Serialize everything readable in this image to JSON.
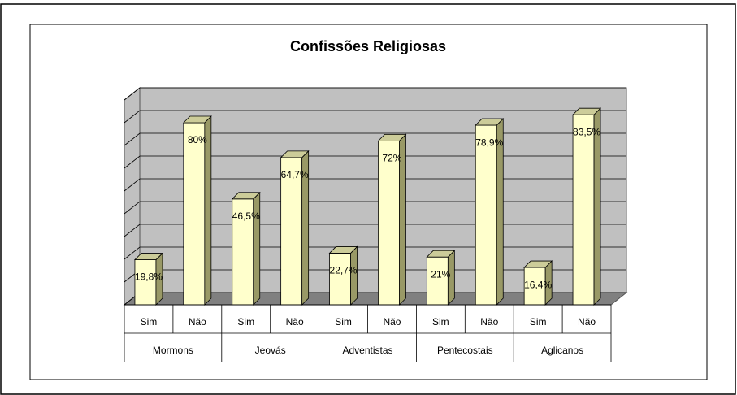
{
  "chart_data": {
    "type": "bar3d",
    "title": "Confissões Religiosas",
    "categories": [
      "Sim",
      "Não",
      "Sim",
      "Não",
      "Sim",
      "Não",
      "Sim",
      "Não",
      "Sim",
      "Não"
    ],
    "groups": [
      "Mormons",
      "Jeovás",
      "Adventistas",
      "Pentecostais",
      "Aglicanos"
    ],
    "values": [
      19.8,
      80,
      46.5,
      64.7,
      22.7,
      72,
      21,
      78.9,
      16.4,
      83.5
    ],
    "value_labels": [
      "19,8%",
      "80%",
      "46,5%",
      "64,7%",
      "22,7%",
      "72%",
      "21%",
      "78,9%",
      "16,4%",
      "83,5%"
    ],
    "color": "#ffffcc",
    "ylim": [
      0,
      90
    ],
    "yticks": [
      0,
      10,
      20,
      30,
      40,
      50,
      60,
      70,
      80,
      90
    ],
    "grid": true
  }
}
